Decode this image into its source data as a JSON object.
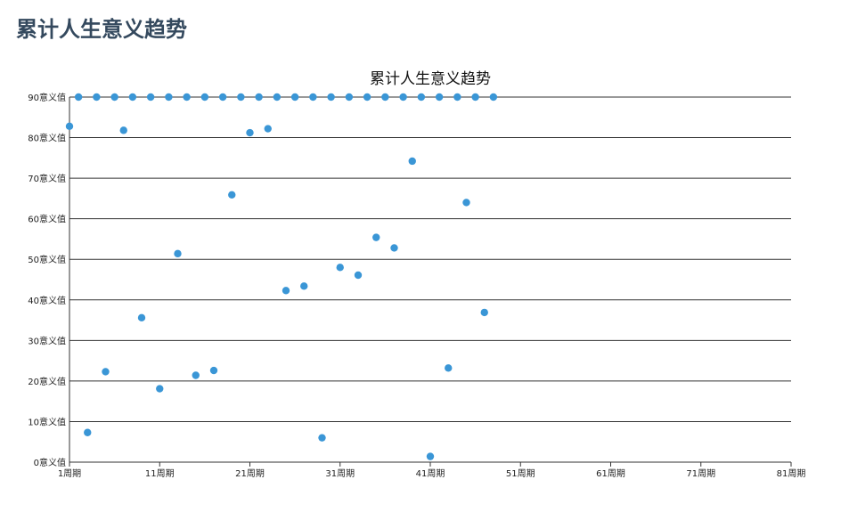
{
  "page": {
    "title": "累计人生意义趋势"
  },
  "colors": {
    "title": "#34495e",
    "point": "#3a96d6",
    "grid": "#333333",
    "text": "#222222"
  },
  "chart_data": {
    "type": "scatter",
    "title": "累计人生意义趋势",
    "xlabel": "",
    "ylabel": "",
    "xlim": [
      1,
      81
    ],
    "ylim": [
      0,
      90
    ],
    "grid": true,
    "x_ticks": [
      1,
      11,
      21,
      31,
      41,
      51,
      61,
      71,
      81
    ],
    "x_tick_labels": [
      "1周期",
      "11周期",
      "21周期",
      "31周期",
      "41周期",
      "51周期",
      "61周期",
      "71周期",
      "81周期"
    ],
    "y_ticks": [
      0,
      10,
      20,
      30,
      40,
      50,
      60,
      70,
      80,
      90
    ],
    "y_tick_labels": [
      "0意义值",
      "10意义值",
      "20意义值",
      "30意义值",
      "40意义值",
      "50意义值",
      "60意义值",
      "70意义值",
      "80意义值",
      "90意义值"
    ],
    "points": [
      {
        "x": 1,
        "y": 82.8
      },
      {
        "x": 2,
        "y": 90
      },
      {
        "x": 3,
        "y": 7.3
      },
      {
        "x": 4,
        "y": 90
      },
      {
        "x": 5,
        "y": 22.3
      },
      {
        "x": 6,
        "y": 90
      },
      {
        "x": 7,
        "y": 81.8
      },
      {
        "x": 8,
        "y": 90
      },
      {
        "x": 9,
        "y": 35.6
      },
      {
        "x": 10,
        "y": 90
      },
      {
        "x": 11,
        "y": 18.1
      },
      {
        "x": 12,
        "y": 90
      },
      {
        "x": 13,
        "y": 51.4
      },
      {
        "x": 14,
        "y": 90
      },
      {
        "x": 15,
        "y": 21.4
      },
      {
        "x": 16,
        "y": 90
      },
      {
        "x": 17,
        "y": 22.6
      },
      {
        "x": 18,
        "y": 90
      },
      {
        "x": 19,
        "y": 65.9
      },
      {
        "x": 20,
        "y": 90
      },
      {
        "x": 21,
        "y": 81.2
      },
      {
        "x": 22,
        "y": 90
      },
      {
        "x": 23,
        "y": 82.2
      },
      {
        "x": 24,
        "y": 90
      },
      {
        "x": 25,
        "y": 42.3
      },
      {
        "x": 26,
        "y": 90
      },
      {
        "x": 27,
        "y": 43.4
      },
      {
        "x": 28,
        "y": 90
      },
      {
        "x": 29,
        "y": 6.0
      },
      {
        "x": 30,
        "y": 90
      },
      {
        "x": 31,
        "y": 48.0
      },
      {
        "x": 32,
        "y": 90
      },
      {
        "x": 33,
        "y": 46.1
      },
      {
        "x": 34,
        "y": 90
      },
      {
        "x": 35,
        "y": 55.4
      },
      {
        "x": 36,
        "y": 90
      },
      {
        "x": 37,
        "y": 52.8
      },
      {
        "x": 38,
        "y": 90
      },
      {
        "x": 39,
        "y": 74.2
      },
      {
        "x": 40,
        "y": 90
      },
      {
        "x": 41,
        "y": 1.4
      },
      {
        "x": 42,
        "y": 90
      },
      {
        "x": 43,
        "y": 23.2
      },
      {
        "x": 44,
        "y": 90
      },
      {
        "x": 45,
        "y": 64.0
      },
      {
        "x": 46,
        "y": 90
      },
      {
        "x": 47,
        "y": 36.9
      },
      {
        "x": 48,
        "y": 90
      }
    ]
  }
}
